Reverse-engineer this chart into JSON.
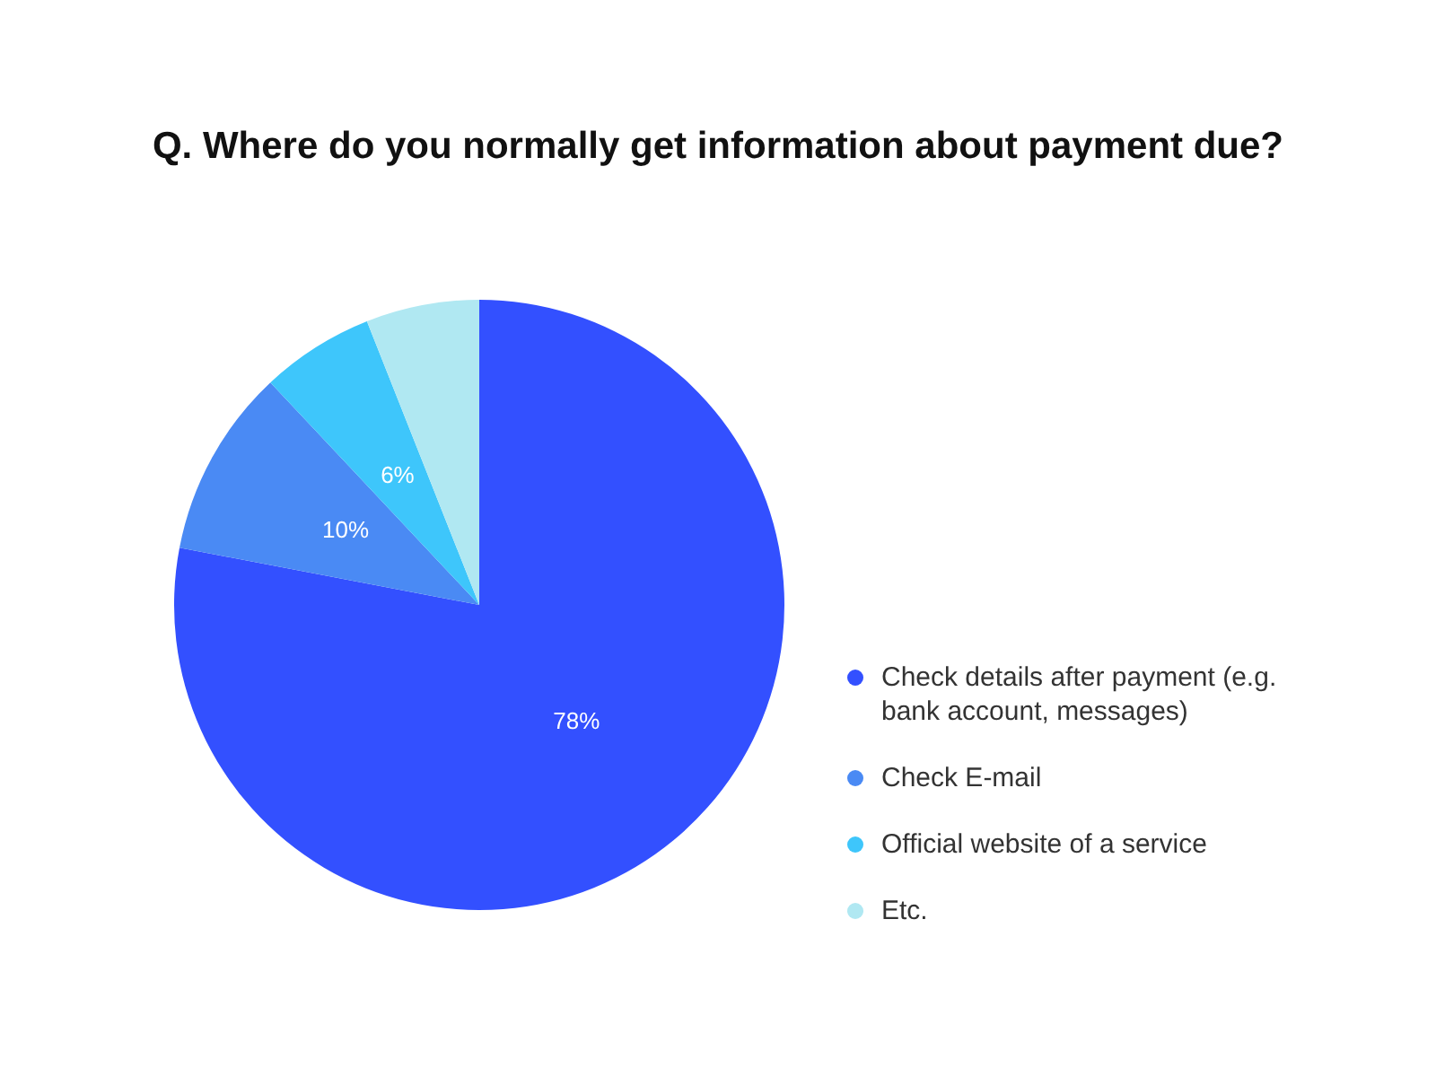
{
  "chart_data": {
    "type": "pie",
    "title": "Q. Where do you normally get information about payment due?",
    "categories": [
      "Check details after payment (e.g. bank account, messages)",
      "Check E-mail",
      "Official website of a service",
      "Etc."
    ],
    "values": [
      78,
      10,
      6,
      6
    ],
    "colors": [
      "#3350ff",
      "#4a8af4",
      "#3ec6fb",
      "#b0e8f2"
    ],
    "value_labels": [
      "78%",
      "10%",
      "6%",
      null
    ],
    "legend": "right"
  }
}
